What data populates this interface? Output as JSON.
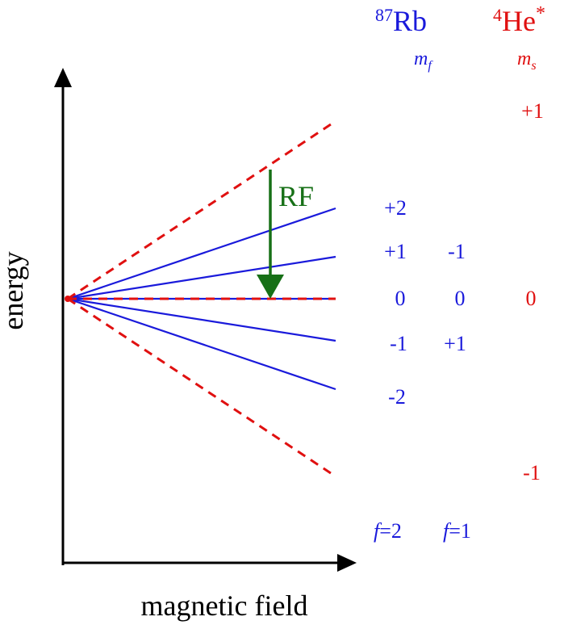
{
  "axes": {
    "y_label": "energy",
    "x_label": "magnetic field"
  },
  "species": {
    "rb": {
      "mass_number": "87",
      "symbol": "Rb",
      "quantum_label": "m",
      "quantum_sub": "f",
      "color": "#1a1adb"
    },
    "he": {
      "mass_number": "4",
      "symbol": "He",
      "superscript": "*",
      "quantum_label": "m",
      "quantum_sub": "s",
      "color": "#e01010"
    }
  },
  "rb_f2": {
    "levels": [
      "+2",
      "+1",
      "0",
      "-1",
      "-2"
    ],
    "label_f": "f",
    "label_eq": "=2"
  },
  "rb_f1": {
    "levels": [
      "-1",
      "0",
      "+1"
    ],
    "label_f": "f",
    "label_eq": "=1"
  },
  "he_levels": [
    "+1",
    "0",
    "-1"
  ],
  "rf": {
    "label": "RF",
    "color": "#177017"
  }
}
